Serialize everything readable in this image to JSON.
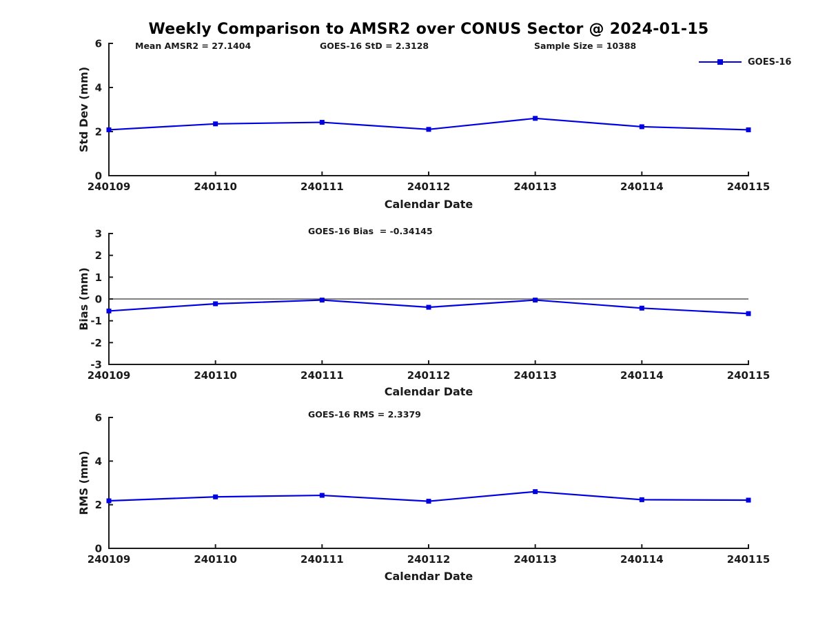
{
  "title": "Weekly Comparison to AMSR2 over CONUS Sector @ 2024-01-15",
  "legend": {
    "label": "GOES-16"
  },
  "colors": {
    "series": "#0000e0",
    "axis": "#1a1a1a",
    "background": "#ffffff"
  },
  "chart_data": [
    {
      "type": "line",
      "x": [
        "240109",
        "240110",
        "240111",
        "240112",
        "240113",
        "240114",
        "240115"
      ],
      "series": [
        {
          "name": "GOES-16",
          "values": [
            2.08,
            2.35,
            2.42,
            2.1,
            2.6,
            2.22,
            2.08
          ]
        }
      ],
      "xlabel": "Calendar Date",
      "ylabel": "Std Dev (mm)",
      "ylim": [
        0,
        6
      ],
      "yticks": [
        0,
        2,
        4,
        6
      ],
      "annotations": [
        "Mean AMSR2 = 27.1404",
        "GOES-16 StD = 2.3128",
        "Sample Size = 10388"
      ],
      "legend": [
        "GOES-16"
      ],
      "legend_position": "upper right",
      "grid": false,
      "zero_line": false
    },
    {
      "type": "line",
      "x": [
        "240109",
        "240110",
        "240111",
        "240112",
        "240113",
        "240114",
        "240115"
      ],
      "series": [
        {
          "name": "GOES-16",
          "values": [
            -0.55,
            -0.22,
            -0.05,
            -0.38,
            -0.05,
            -0.42,
            -0.67
          ]
        }
      ],
      "xlabel": "Calendar Date",
      "ylabel": "Bias (mm)",
      "ylim": [
        -3,
        3
      ],
      "yticks": [
        -3,
        -2,
        -1,
        0,
        1,
        2,
        3
      ],
      "annotations": [
        "GOES-16 Bias  = -0.34145"
      ],
      "grid": false,
      "zero_line": true
    },
    {
      "type": "line",
      "x": [
        "240109",
        "240110",
        "240111",
        "240112",
        "240113",
        "240114",
        "240115"
      ],
      "series": [
        {
          "name": "GOES-16",
          "values": [
            2.18,
            2.36,
            2.43,
            2.16,
            2.6,
            2.23,
            2.21
          ]
        }
      ],
      "xlabel": "Calendar Date",
      "ylabel": "RMS (mm)",
      "ylim": [
        0,
        6
      ],
      "yticks": [
        0,
        2,
        4,
        6
      ],
      "annotations": [
        "GOES-16 RMS = 2.3379"
      ],
      "grid": false,
      "zero_line": false
    }
  ]
}
